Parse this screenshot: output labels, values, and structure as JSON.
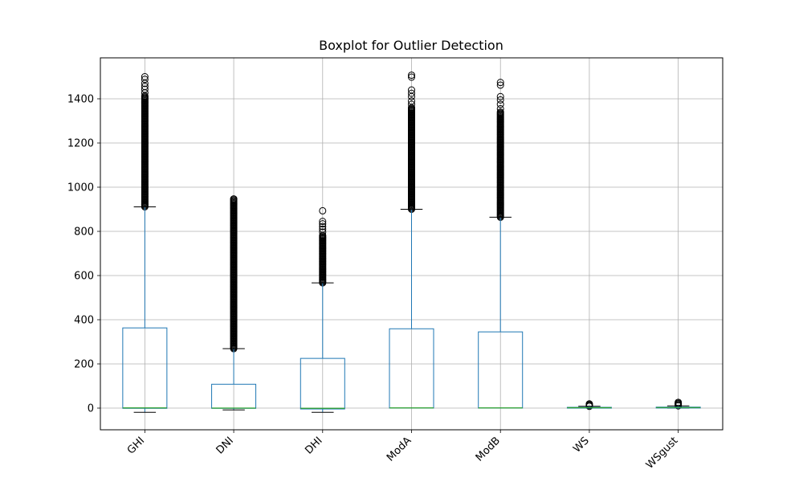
{
  "chart_data": {
    "type": "box",
    "title": "Boxplot for Outlier Detection",
    "xlabel": "",
    "ylabel": "",
    "ylim": [
      -95,
      1572
    ],
    "yticks": [
      0,
      200,
      400,
      600,
      800,
      1000,
      1200,
      1400
    ],
    "grid": true,
    "colors": {
      "box": "#1f77b4",
      "median": "#2ca02c",
      "whisker": "#1f77b4",
      "cap": "#000000",
      "flier": "#000000",
      "grid": "#b0b0b0"
    },
    "categories": [
      "GHI",
      "DNI",
      "DHI",
      "ModA",
      "ModB",
      "WS",
      "WSgust"
    ],
    "boxes": [
      {
        "label": "GHI",
        "whislo": -19,
        "q1": -1,
        "median": 1,
        "q3": 363,
        "whishi": 911,
        "fliers_min": 911,
        "fliers_max": 1413,
        "fliers_extra": [
          1427,
          1443,
          1456,
          1470,
          1488,
          1500
        ]
      },
      {
        "label": "DNI",
        "whislo": -8,
        "q1": -1,
        "median": 0,
        "q3": 108,
        "whishi": 269,
        "fliers_min": 269,
        "fliers_max": 947,
        "fliers_extra": []
      },
      {
        "label": "DHI",
        "whislo": -19,
        "q1": -4,
        "median": -1,
        "q3": 225,
        "whishi": 567,
        "fliers_min": 567,
        "fliers_max": 782,
        "fliers_extra": [
          797,
          810,
          822,
          834,
          845,
          893
        ]
      },
      {
        "label": "ModA",
        "whislo": 0,
        "q1": 0,
        "median": 1,
        "q3": 359,
        "whishi": 900,
        "fliers_min": 900,
        "fliers_max": 1360,
        "fliers_extra": [
          1375,
          1390,
          1410,
          1425,
          1440,
          1498,
          1507
        ]
      },
      {
        "label": "ModB",
        "whislo": 0,
        "q1": 0,
        "median": 1,
        "q3": 345,
        "whishi": 864,
        "fliers_min": 864,
        "fliers_max": 1340,
        "fliers_extra": [
          1355,
          1375,
          1395,
          1410,
          1462,
          1474
        ]
      },
      {
        "label": "WS",
        "whislo": 0,
        "q1": 0.5,
        "median": 1.9,
        "q3": 3.5,
        "whishi": 8,
        "fliers_min": 8,
        "fliers_max": 19,
        "fliers_extra": []
      },
      {
        "label": "WSgust",
        "whislo": 0,
        "q1": 0.5,
        "median": 2.5,
        "q3": 4.4,
        "whishi": 10,
        "fliers_min": 10,
        "fliers_max": 26,
        "fliers_extra": []
      }
    ]
  }
}
